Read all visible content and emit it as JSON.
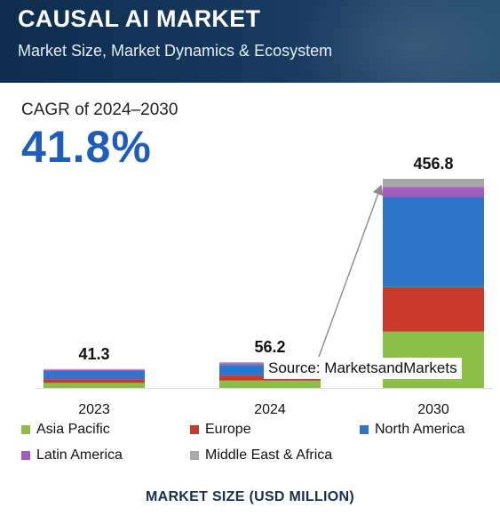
{
  "header": {
    "title": "CAUSAL AI MARKET",
    "subtitle": "Market Size, Market Dynamics & Ecosystem"
  },
  "cagr": {
    "label": "CAGR of 2024–2030",
    "value": "41.8%"
  },
  "source_text": "Source: MarketsandMarkets",
  "colors": {
    "header_background": "#173a5f",
    "accent": "#1f5eb8",
    "asia_pacific": "#8cbf4a",
    "europe": "#c8392b",
    "north_america": "#2f76c8",
    "latin_america": "#a45cc0",
    "middle_east_africa": "#a8a8a8"
  },
  "chart_data": {
    "type": "bar",
    "stacked": true,
    "categories": [
      "2023",
      "2024",
      "2030"
    ],
    "totals": [
      41.3,
      56.2,
      456.8
    ],
    "total_labels": [
      "41.3",
      "56.2",
      "456.8"
    ],
    "series": [
      {
        "name": "Asia Pacific",
        "values": [
          11.0,
          16.0,
          123.0
        ]
      },
      {
        "name": "Europe",
        "values": [
          8.0,
          11.0,
          97.0
        ]
      },
      {
        "name": "North America",
        "values": [
          18.0,
          23.0,
          197.0
        ]
      },
      {
        "name": "Latin America",
        "values": [
          2.5,
          3.5,
          22.0
        ]
      },
      {
        "name": "Middle East & Africa",
        "values": [
          1.8,
          2.7,
          17.8
        ]
      }
    ],
    "xlabel": "MARKET SIZE (USD MILLION)",
    "ylabel": "",
    "ylim": [
      0,
      456.8
    ],
    "grid": false,
    "legend_position": "bottom",
    "annotation": "growth arrow from 2024 to 2030"
  }
}
